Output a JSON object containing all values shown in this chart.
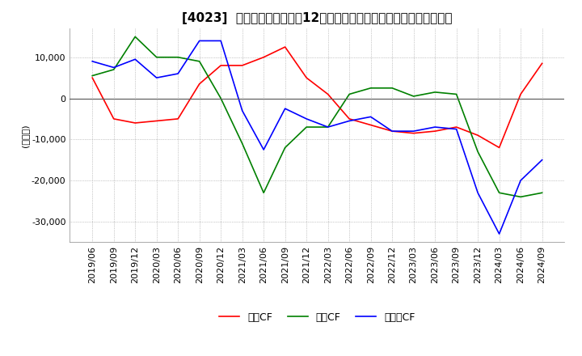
{
  "title": "[4023]  キャッシュフローの12か月移動合計の対前年同期増減額の推移",
  "ylabel": "(百万円)",
  "ylim": [
    -35000,
    17000
  ],
  "yticks": [
    10000,
    0,
    -10000,
    -20000,
    -30000
  ],
  "legend_labels": [
    "営業CF",
    "投資CF",
    "フリーCF"
  ],
  "legend_colors": [
    "#ff0000",
    "#008000",
    "#0000ff"
  ],
  "x_labels": [
    "2019/06",
    "2019/09",
    "2019/12",
    "2020/03",
    "2020/06",
    "2020/09",
    "2020/12",
    "2021/03",
    "2021/06",
    "2021/09",
    "2021/12",
    "2022/03",
    "2022/06",
    "2022/09",
    "2022/12",
    "2023/03",
    "2023/06",
    "2023/09",
    "2023/12",
    "2024/03",
    "2024/06",
    "2024/09"
  ],
  "operating_cf": [
    5000,
    -5000,
    -6000,
    -5500,
    -5000,
    3500,
    8000,
    8000,
    10000,
    12500,
    5000,
    1000,
    -5000,
    -6500,
    -8000,
    -8500,
    -8000,
    -7000,
    -9000,
    -12000,
    1000,
    8500
  ],
  "investing_cf": [
    5500,
    7000,
    15000,
    10000,
    10000,
    9000,
    0,
    -11000,
    -23000,
    -12000,
    -7000,
    -7000,
    1000,
    2500,
    2500,
    500,
    1500,
    1000,
    -13000,
    -23000,
    -24000,
    -23000
  ],
  "free_cf": [
    9000,
    7500,
    9500,
    5000,
    6000,
    14000,
    14000,
    -3000,
    -12500,
    -2500,
    -5000,
    -7000,
    -5500,
    -4500,
    -8000,
    -8000,
    -7000,
    -7500,
    -23000,
    -33000,
    -20000,
    -15000
  ],
  "background_color": "#ffffff",
  "grid_color": "#999999",
  "title_fontsize": 11,
  "axis_fontsize": 8,
  "legend_fontsize": 9
}
